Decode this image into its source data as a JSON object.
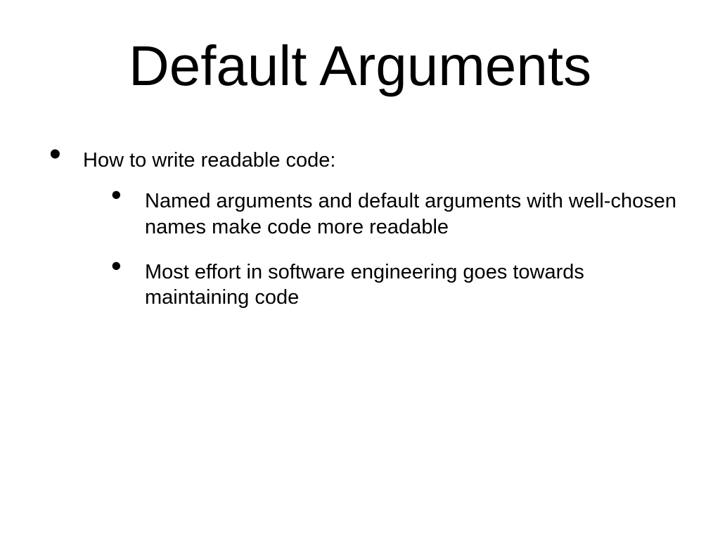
{
  "slide": {
    "title": "Default Arguments",
    "background_color": "#ffffff",
    "text_color": "#000000",
    "title_fontsize": 80,
    "body_fontsize": 29,
    "font_family": "Arial",
    "bullets": [
      {
        "text": "How to write readable code:",
        "children": [
          {
            "text": "Named arguments and default arguments with well-chosen names make code more readable"
          },
          {
            "text": "Most effort in software engineering goes towards maintaining code"
          }
        ]
      }
    ]
  }
}
